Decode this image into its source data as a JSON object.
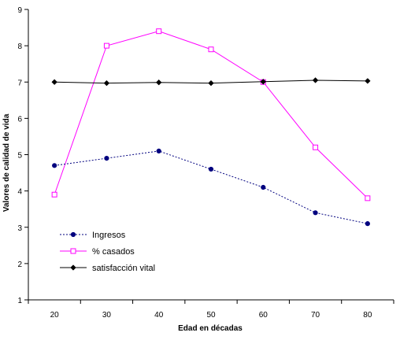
{
  "chart_data": {
    "type": "line",
    "title": "",
    "xlabel": "Edad en décadas",
    "ylabel": "Valores de calidad de vida",
    "x": [
      20,
      30,
      40,
      50,
      60,
      70,
      80
    ],
    "x_tick_labels": [
      "20",
      "30",
      "40",
      "50",
      "60",
      "70",
      "80"
    ],
    "ylim": [
      1,
      9
    ],
    "y_ticks": [
      1,
      2,
      3,
      4,
      5,
      6,
      7,
      8,
      9
    ],
    "y_tick_labels": [
      "1",
      "2",
      "3",
      "4",
      "5",
      "6",
      "7",
      "8",
      "9"
    ],
    "grid": false,
    "legend_position": "bottom-left",
    "series": [
      {
        "name": "Ingresos",
        "values": [
          4.7,
          4.9,
          5.1,
          4.6,
          4.1,
          3.4,
          3.1
        ],
        "color": "#00007f",
        "line_style": "dotted",
        "marker": "circle-filled"
      },
      {
        "name": "% casados",
        "values": [
          3.9,
          8.0,
          8.4,
          7.9,
          7.0,
          5.2,
          3.8
        ],
        "color": "#ff00ff",
        "line_style": "solid",
        "marker": "square-open"
      },
      {
        "name": "satisfacción vital",
        "values": [
          7.0,
          6.97,
          6.99,
          6.97,
          7.01,
          7.05,
          7.03
        ],
        "color": "#000000",
        "line_style": "solid",
        "marker": "diamond-filled"
      }
    ]
  }
}
